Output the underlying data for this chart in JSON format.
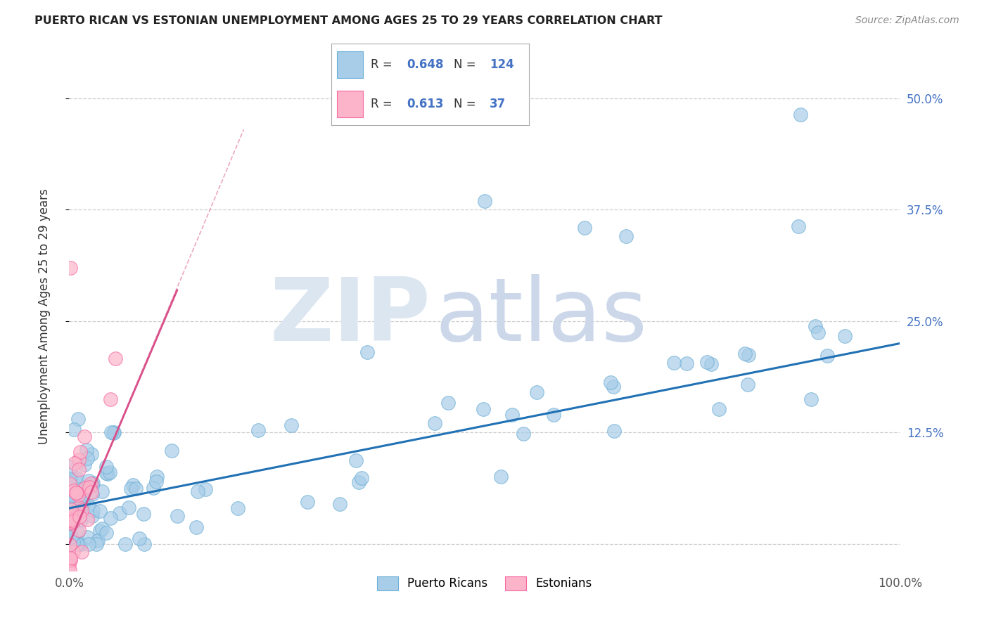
{
  "title": "PUERTO RICAN VS ESTONIAN UNEMPLOYMENT AMONG AGES 25 TO 29 YEARS CORRELATION CHART",
  "source": "Source: ZipAtlas.com",
  "ylabel": "Unemployment Among Ages 25 to 29 years",
  "xlim": [
    0,
    1.0
  ],
  "ylim": [
    -0.03,
    0.54
  ],
  "xticks": [
    0.0,
    1.0
  ],
  "xtick_labels": [
    "0.0%",
    "100.0%"
  ],
  "yticks": [
    0.0,
    0.125,
    0.25,
    0.375,
    0.5
  ],
  "ytick_labels": [
    "",
    "12.5%",
    "25.0%",
    "37.5%",
    "50.0%"
  ],
  "blue_R": 0.648,
  "blue_N": 124,
  "pink_R": 0.613,
  "pink_N": 37,
  "blue_color": "#a8cde8",
  "blue_edge_color": "#6baed6",
  "pink_color": "#fbb4c9",
  "pink_edge_color": "#f768a1",
  "blue_line_color": "#2171b5",
  "pink_line_color": "#d94f8a",
  "watermark_zip_color": "#e0e6ef",
  "watermark_atlas_color": "#d4dce8",
  "legend_label_blue": "Puerto Ricans",
  "legend_label_pink": "Estonians",
  "blue_trend_x0": 0.0,
  "blue_trend_y0": 0.04,
  "blue_trend_x1": 1.0,
  "blue_trend_y1": 0.225,
  "pink_trend_x0": 0.0,
  "pink_trend_y0": 0.0,
  "pink_trend_x1": 0.13,
  "pink_trend_y1": 0.285
}
